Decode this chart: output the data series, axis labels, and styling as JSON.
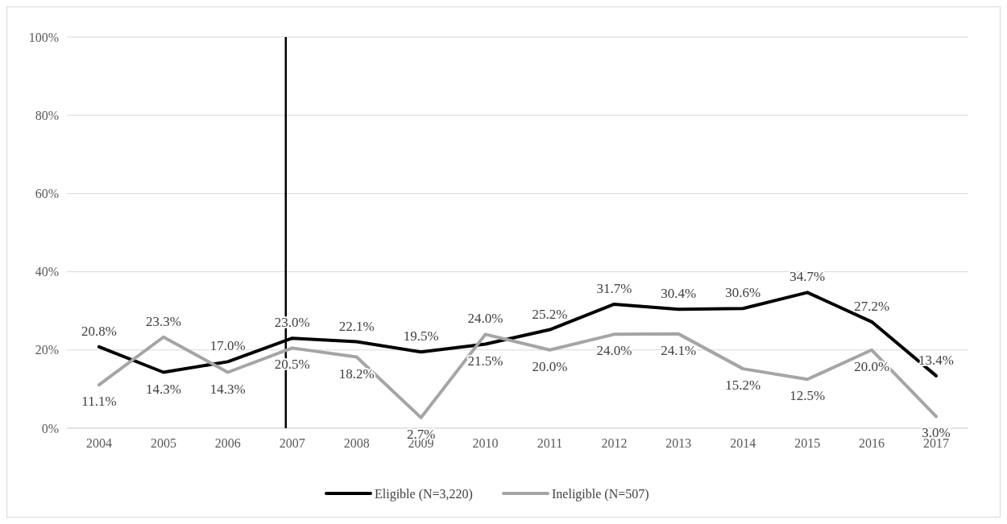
{
  "chart_data": {
    "type": "line",
    "x": [
      2004,
      2005,
      2006,
      2007,
      2008,
      2009,
      2010,
      2011,
      2012,
      2013,
      2014,
      2015,
      2016,
      2017
    ],
    "xlim": [
      2003.5,
      2017.5
    ],
    "xticks": [
      2004,
      2005,
      2006,
      2007,
      2008,
      2009,
      2010,
      2011,
      2012,
      2013,
      2014,
      2015,
      2016,
      2017
    ],
    "ylim": [
      0,
      100
    ],
    "yticks": [
      {
        "value": 0,
        "label": "0%"
      },
      {
        "value": 20,
        "label": "20%"
      },
      {
        "value": 40,
        "label": "40%"
      },
      {
        "value": 60,
        "label": "60%"
      },
      {
        "value": 80,
        "label": "80%"
      },
      {
        "value": 100,
        "label": "100%"
      }
    ],
    "grid": "y",
    "legend": "bottom",
    "marker": "none",
    "line_style": "solid",
    "ref_lines": [
      {
        "axis": "x",
        "value": 2006.9,
        "color": "#000000"
      }
    ],
    "series": [
      {
        "name": "Eligible (N=3,220)",
        "color": "#000000",
        "values": [
          20.8,
          14.3,
          17.0,
          23.0,
          22.1,
          19.5,
          21.5,
          25.2,
          31.7,
          30.4,
          30.6,
          34.7,
          27.2,
          13.4
        ],
        "value_labels": [
          "20.8%",
          "14.3%",
          "17.0%",
          "23.0%",
          "22.1%",
          "19.5%",
          "21.5%",
          "25.2%",
          "31.7%",
          "30.4%",
          "30.6%",
          "34.7%",
          "27.2%",
          "13.4%"
        ]
      },
      {
        "name": "Ineligible (N=507)",
        "color": "#a5a5a5",
        "values": [
          11.1,
          23.3,
          14.3,
          20.5,
          18.2,
          2.7,
          24.0,
          20.0,
          24.0,
          24.1,
          15.2,
          12.5,
          20.0,
          3.0
        ],
        "value_labels": [
          "11.1%",
          "23.3%",
          "14.3%",
          "20.5%",
          "18.2%",
          "2.7%",
          "24.0%",
          "20.0%",
          "24.0%",
          "24.1%",
          "15.2%",
          "12.5%",
          "20.0%",
          "3.0%"
        ]
      }
    ]
  }
}
